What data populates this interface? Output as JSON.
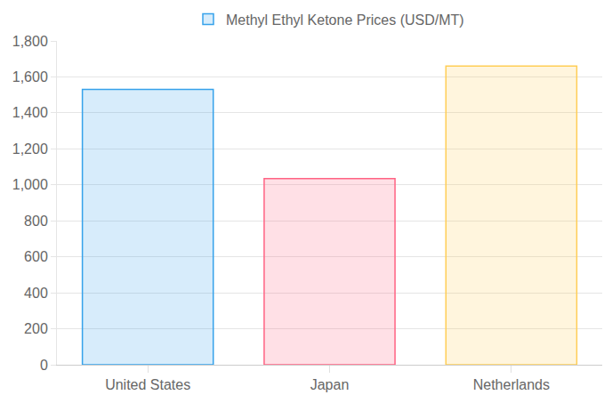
{
  "chart_data": {
    "type": "bar",
    "series": [
      {
        "name": "Methyl Ethyl Ketone Prices (USD/MT)",
        "values": [
          1530,
          1035,
          1660
        ]
      }
    ],
    "categories": [
      "United States",
      "Japan",
      "Netherlands"
    ],
    "colors": [
      "#36a2eb",
      "#ff6384",
      "#ffce56"
    ],
    "ylim": [
      0,
      1800
    ],
    "yticks": [
      0,
      200,
      400,
      600,
      800,
      {
        "value": 1000,
        "label": "1,000"
      },
      {
        "value": 1200,
        "label": "1,200"
      },
      {
        "value": 1400,
        "label": "1,400"
      },
      {
        "value": 1600,
        "label": "1,600"
      },
      {
        "value": 1800,
        "label": "1,800"
      }
    ],
    "grid": true,
    "legend": "top"
  }
}
